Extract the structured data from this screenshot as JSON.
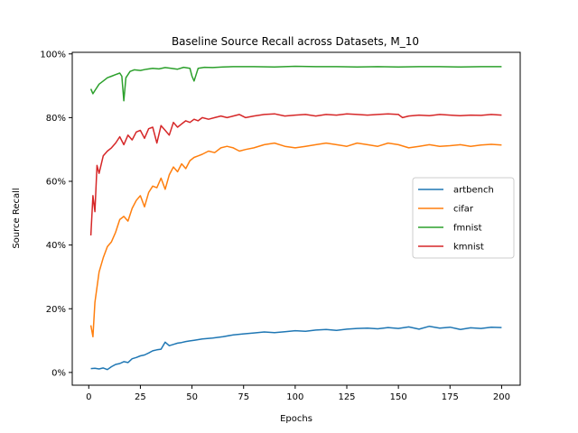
{
  "chart_data": {
    "type": "line",
    "title": "Baseline Source Recall across Datasets, M_10",
    "xlabel": "Epochs",
    "ylabel": "Source Recall",
    "xlim": [
      -8,
      209
    ],
    "ylim": [
      -0.04,
      1.005
    ],
    "x_ticks": [
      0,
      25,
      50,
      75,
      100,
      125,
      150,
      175,
      200
    ],
    "y_ticks": [
      0,
      0.2,
      0.4,
      0.6,
      0.8,
      1.0
    ],
    "y_tick_labels": [
      "0%",
      "20%",
      "40%",
      "60%",
      "80%",
      "100%"
    ],
    "x_tick_labels": [
      "0",
      "25",
      "50",
      "75",
      "100",
      "125",
      "150",
      "175",
      "200"
    ],
    "grid": false,
    "legend_position": "center-right",
    "series": [
      {
        "name": "artbench",
        "color": "#1f77b4",
        "x": [
          1,
          3,
          5,
          7,
          9,
          11,
          13,
          15,
          17,
          19,
          21,
          23,
          25,
          27,
          29,
          31,
          33,
          35,
          37,
          39,
          41,
          43,
          45,
          47,
          49,
          51,
          55,
          60,
          65,
          70,
          75,
          80,
          85,
          90,
          95,
          100,
          105,
          110,
          115,
          120,
          125,
          130,
          135,
          140,
          145,
          150,
          155,
          160,
          165,
          170,
          175,
          180,
          185,
          190,
          195,
          200
        ],
        "values": [
          0.012,
          0.013,
          0.011,
          0.014,
          0.009,
          0.018,
          0.025,
          0.028,
          0.034,
          0.031,
          0.043,
          0.047,
          0.052,
          0.055,
          0.061,
          0.068,
          0.071,
          0.073,
          0.095,
          0.084,
          0.088,
          0.092,
          0.094,
          0.097,
          0.099,
          0.101,
          0.105,
          0.108,
          0.112,
          0.118,
          0.121,
          0.124,
          0.127,
          0.125,
          0.128,
          0.131,
          0.129,
          0.133,
          0.135,
          0.132,
          0.136,
          0.138,
          0.139,
          0.137,
          0.141,
          0.138,
          0.143,
          0.136,
          0.145,
          0.139,
          0.142,
          0.135,
          0.14,
          0.138,
          0.142,
          0.141
        ]
      },
      {
        "name": "cifar",
        "color": "#ff7f0e",
        "x": [
          1,
          2,
          3,
          5,
          7,
          9,
          11,
          13,
          15,
          17,
          19,
          21,
          23,
          25,
          27,
          29,
          31,
          33,
          35,
          37,
          39,
          41,
          43,
          45,
          47,
          49,
          51,
          53,
          55,
          58,
          61,
          64,
          67,
          70,
          73,
          76,
          80,
          85,
          90,
          95,
          100,
          105,
          110,
          115,
          120,
          125,
          130,
          135,
          140,
          145,
          150,
          155,
          160,
          165,
          170,
          175,
          180,
          185,
          190,
          195,
          200
        ],
        "values": [
          0.148,
          0.112,
          0.22,
          0.315,
          0.36,
          0.395,
          0.41,
          0.44,
          0.48,
          0.49,
          0.475,
          0.515,
          0.54,
          0.555,
          0.52,
          0.565,
          0.585,
          0.58,
          0.61,
          0.575,
          0.62,
          0.645,
          0.63,
          0.655,
          0.64,
          0.665,
          0.675,
          0.68,
          0.685,
          0.695,
          0.69,
          0.705,
          0.71,
          0.705,
          0.695,
          0.7,
          0.705,
          0.715,
          0.72,
          0.71,
          0.705,
          0.71,
          0.715,
          0.72,
          0.715,
          0.71,
          0.72,
          0.715,
          0.71,
          0.72,
          0.715,
          0.705,
          0.71,
          0.715,
          0.71,
          0.712,
          0.715,
          0.71,
          0.714,
          0.716,
          0.714
        ]
      },
      {
        "name": "fmnist",
        "color": "#2ca02c",
        "x": [
          1,
          2,
          3,
          5,
          7,
          9,
          11,
          13,
          15,
          16,
          17,
          18,
          20,
          22,
          25,
          28,
          31,
          34,
          37,
          40,
          43,
          46,
          49,
          50,
          51,
          53,
          56,
          60,
          65,
          70,
          80,
          90,
          100,
          110,
          120,
          130,
          140,
          150,
          160,
          170,
          180,
          190,
          200
        ],
        "values": [
          0.89,
          0.875,
          0.885,
          0.905,
          0.915,
          0.925,
          0.93,
          0.935,
          0.94,
          0.93,
          0.853,
          0.925,
          0.945,
          0.95,
          0.948,
          0.952,
          0.955,
          0.953,
          0.957,
          0.955,
          0.952,
          0.958,
          0.955,
          0.93,
          0.915,
          0.955,
          0.958,
          0.957,
          0.959,
          0.96,
          0.96,
          0.959,
          0.961,
          0.96,
          0.96,
          0.959,
          0.96,
          0.959,
          0.96,
          0.96,
          0.959,
          0.96,
          0.96
        ]
      },
      {
        "name": "kmnist",
        "color": "#d62728",
        "x": [
          1,
          2,
          3,
          4,
          5,
          7,
          9,
          11,
          13,
          15,
          17,
          19,
          21,
          23,
          25,
          27,
          29,
          31,
          33,
          35,
          37,
          39,
          41,
          43,
          45,
          47,
          49,
          51,
          53,
          55,
          58,
          61,
          64,
          67,
          70,
          73,
          76,
          80,
          85,
          90,
          95,
          100,
          105,
          110,
          115,
          120,
          125,
          130,
          135,
          140,
          145,
          150,
          152,
          155,
          160,
          165,
          170,
          175,
          180,
          185,
          190,
          195,
          200
        ],
        "values": [
          0.43,
          0.555,
          0.505,
          0.65,
          0.625,
          0.68,
          0.695,
          0.705,
          0.72,
          0.74,
          0.715,
          0.745,
          0.73,
          0.755,
          0.76,
          0.735,
          0.765,
          0.77,
          0.72,
          0.775,
          0.76,
          0.745,
          0.785,
          0.77,
          0.78,
          0.79,
          0.785,
          0.795,
          0.79,
          0.8,
          0.795,
          0.8,
          0.805,
          0.8,
          0.805,
          0.81,
          0.8,
          0.805,
          0.81,
          0.812,
          0.805,
          0.808,
          0.81,
          0.805,
          0.81,
          0.808,
          0.812,
          0.81,
          0.808,
          0.81,
          0.812,
          0.81,
          0.8,
          0.805,
          0.808,
          0.806,
          0.81,
          0.808,
          0.806,
          0.808,
          0.807,
          0.81,
          0.808
        ]
      }
    ]
  }
}
